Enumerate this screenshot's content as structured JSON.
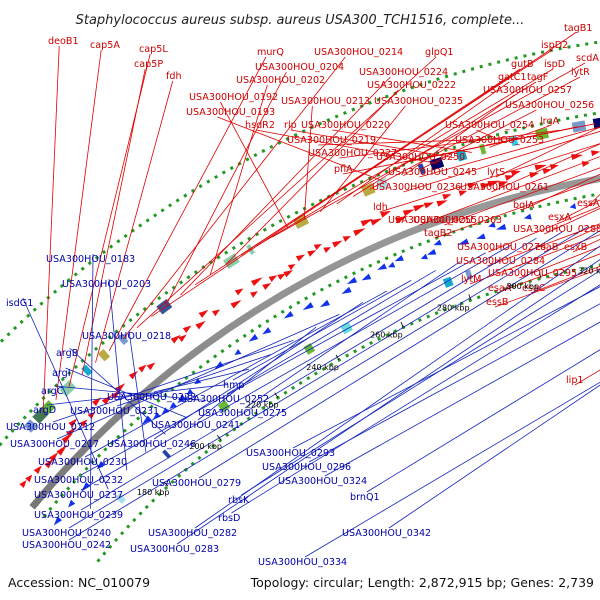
{
  "header": {
    "title": "Staphylococcus aureus subsp. aureus USA300_TCH1516, complete..."
  },
  "footer": {
    "accession": "Accession: NC_010079",
    "summary": "Topology: circular; Length: 2,872,915 bp; Genes: 2,739"
  },
  "ticks": [
    "180 kbp",
    "200 kbp",
    "220 kbp",
    "240 kbp",
    "260 kbp",
    "280 kbp",
    "300 kbp",
    "320 kbp",
    "340 kbp",
    "360 kbp",
    "380 kbp",
    "400 kbp",
    "420 kbp"
  ],
  "forward_labels": [
    "deoB1",
    "cap5A",
    "cap5L",
    "cap5P",
    "fdh",
    "murQ",
    "USA300HOU_0214",
    "glpQ1",
    "tagB1",
    "USA300HOU_0204",
    "USA300HOU_0224",
    "ispD2",
    "USA300HOU_0202",
    "USA300HOU_0222",
    "gutB",
    "ispD",
    "scdA",
    "USA300HOU_0192",
    "USA300HOU_0213",
    "USA300HOU_0235",
    "gatC1",
    "tagF",
    "lytR",
    "USA300HOU_0193",
    "USA300HOU_0257",
    "USA300HOU_0256",
    "hsdR2",
    "rlp",
    "USA300HOU_0220",
    "lrgA",
    "USA300HOU_0254",
    "USA300HOU_0219",
    "USA300HOU_0253",
    "USA300HOU_0227",
    "USA300HOU_0250",
    "pflA",
    "lytS",
    "USA300HOU_0245",
    "USA300HOU_0236",
    "USA300HOU_0261",
    "essA",
    "ldh",
    "USA300HOU_0255",
    "bglA",
    "USA300HOU_0263",
    "esxA",
    "tagB2",
    "USA300HOU_0288",
    "USA300HOU_0276",
    "esaB",
    "esxB",
    "USA300HOU_0284",
    "lytM",
    "USA300HOU_0295",
    "esaA",
    "esaC",
    "essB",
    "lip1"
  ],
  "reverse_labels": [
    "USA300HOU_0183",
    "isdG1",
    "USA300HOU_0203",
    "USA300HOU_0218",
    "argB",
    "argI",
    "argC",
    "argD",
    "USA300HOU_0228",
    "USA300HOU_0231",
    "USA300HOU_0212",
    "USA300HOU_0241",
    "USA300HOU_0217",
    "USA300HOU_0246",
    "USA300HOU_0230",
    "hmp",
    "USA300HOU_0252",
    "USA300HOU_0275",
    "USA300HOU_0232",
    "USA300HOU_0237",
    "USA300HOU_0239",
    "USA300HOU_0240",
    "USA300HOU_0242",
    "USA300HOU_0279",
    "USA300HOU_0282",
    "USA300HOU_0283",
    "rbsK",
    "rbsD",
    "USA300HOU_0293",
    "USA300HOU_0296",
    "USA300HOU_0324",
    "brnQ1",
    "USA300HOU_0342",
    "USA300HOU_0334"
  ],
  "colors": {
    "forward": "#ee1111",
    "reverse": "#1133ee",
    "backbone": "#999999",
    "dots": "#229922"
  }
}
